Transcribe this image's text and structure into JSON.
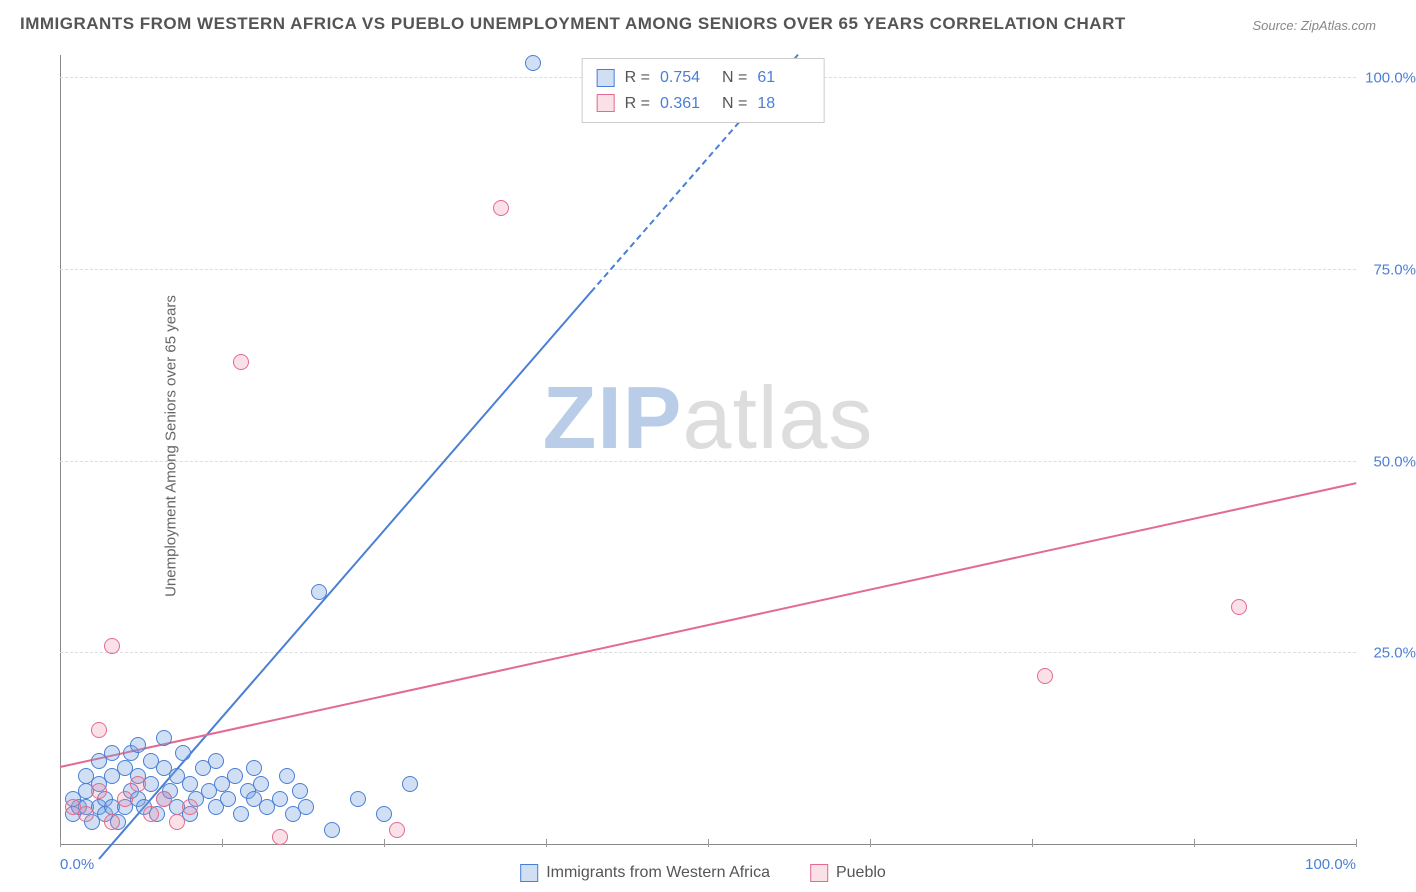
{
  "title": "IMMIGRANTS FROM WESTERN AFRICA VS PUEBLO UNEMPLOYMENT AMONG SENIORS OVER 65 YEARS CORRELATION CHART",
  "source": "Source: ZipAtlas.com",
  "ylabel": "Unemployment Among Seniors over 65 years",
  "watermark_a": "ZIP",
  "watermark_b": "atlas",
  "chart": {
    "type": "scatter",
    "xlim": [
      0,
      100
    ],
    "ylim": [
      0,
      103
    ],
    "xtick_positions": [
      0,
      12.5,
      25,
      37.5,
      50,
      62.5,
      75,
      87.5,
      100
    ],
    "xtick_labels": {
      "0": "0.0%",
      "100": "100.0%"
    },
    "ytick_positions": [
      25,
      50,
      75,
      100
    ],
    "ytick_labels": [
      "25.0%",
      "50.0%",
      "75.0%",
      "100.0%"
    ],
    "grid_color": "#dddddd",
    "axis_color": "#888888",
    "label_color": "#4a7fd6",
    "background": "#ffffff",
    "point_radius": 8,
    "series": [
      {
        "key": "immigrants",
        "name": "Immigrants from Western Africa",
        "fill": "rgba(120,164,222,0.35)",
        "stroke": "#4a7fd6",
        "R": "0.754",
        "N": "61",
        "regression": {
          "x1": 3,
          "y1": -2,
          "x2": 41,
          "y2": 72,
          "dash_from_x": 41,
          "x3": 57,
          "y3": 103
        },
        "points": [
          [
            1,
            4
          ],
          [
            1.5,
            5
          ],
          [
            2,
            5
          ],
          [
            2,
            7
          ],
          [
            2.5,
            3
          ],
          [
            3,
            5
          ],
          [
            3,
            8
          ],
          [
            3.5,
            4
          ],
          [
            3.5,
            6
          ],
          [
            4,
            5
          ],
          [
            4,
            9
          ],
          [
            4.5,
            3
          ],
          [
            5,
            5
          ],
          [
            5,
            10
          ],
          [
            5.5,
            7
          ],
          [
            5.5,
            12
          ],
          [
            6,
            6
          ],
          [
            6,
            9
          ],
          [
            6.5,
            5
          ],
          [
            7,
            8
          ],
          [
            7,
            11
          ],
          [
            7.5,
            4
          ],
          [
            8,
            6
          ],
          [
            8,
            10
          ],
          [
            8.5,
            7
          ],
          [
            9,
            5
          ],
          [
            9,
            9
          ],
          [
            9.5,
            12
          ],
          [
            10,
            4
          ],
          [
            10,
            8
          ],
          [
            10.5,
            6
          ],
          [
            11,
            10
          ],
          [
            11.5,
            7
          ],
          [
            12,
            5
          ],
          [
            12,
            11
          ],
          [
            12.5,
            8
          ],
          [
            13,
            6
          ],
          [
            13.5,
            9
          ],
          [
            14,
            4
          ],
          [
            14.5,
            7
          ],
          [
            15,
            10
          ],
          [
            15,
            6
          ],
          [
            15.5,
            8
          ],
          [
            16,
            5
          ],
          [
            17,
            6
          ],
          [
            17.5,
            9
          ],
          [
            18,
            4
          ],
          [
            18.5,
            7
          ],
          [
            19,
            5
          ],
          [
            20,
            33
          ],
          [
            21,
            2
          ],
          [
            23,
            6
          ],
          [
            25,
            4
          ],
          [
            27,
            8
          ],
          [
            8,
            14
          ],
          [
            6,
            13
          ],
          [
            4,
            12
          ],
          [
            3,
            11
          ],
          [
            2,
            9
          ],
          [
            1,
            6
          ],
          [
            36.5,
            102
          ]
        ]
      },
      {
        "key": "pueblo",
        "name": "Pueblo",
        "fill": "rgba(235,130,160,0.25)",
        "stroke": "#e36a92",
        "R": "0.361",
        "N": "18",
        "regression": {
          "x1": 0,
          "y1": 10,
          "x2": 100,
          "y2": 47
        },
        "points": [
          [
            1,
            5
          ],
          [
            2,
            4
          ],
          [
            3,
            7
          ],
          [
            4,
            3
          ],
          [
            5,
            6
          ],
          [
            6,
            8
          ],
          [
            7,
            4
          ],
          [
            8,
            6
          ],
          [
            9,
            3
          ],
          [
            10,
            5
          ],
          [
            3,
            15
          ],
          [
            4,
            26
          ],
          [
            14,
            63
          ],
          [
            17,
            1
          ],
          [
            26,
            2
          ],
          [
            34,
            83
          ],
          [
            76,
            22
          ],
          [
            91,
            31
          ]
        ]
      }
    ]
  },
  "legend_top_labels": {
    "R": "R =",
    "N": "N ="
  },
  "legend_bottom": [
    {
      "series": "immigrants"
    },
    {
      "series": "pueblo"
    }
  ]
}
